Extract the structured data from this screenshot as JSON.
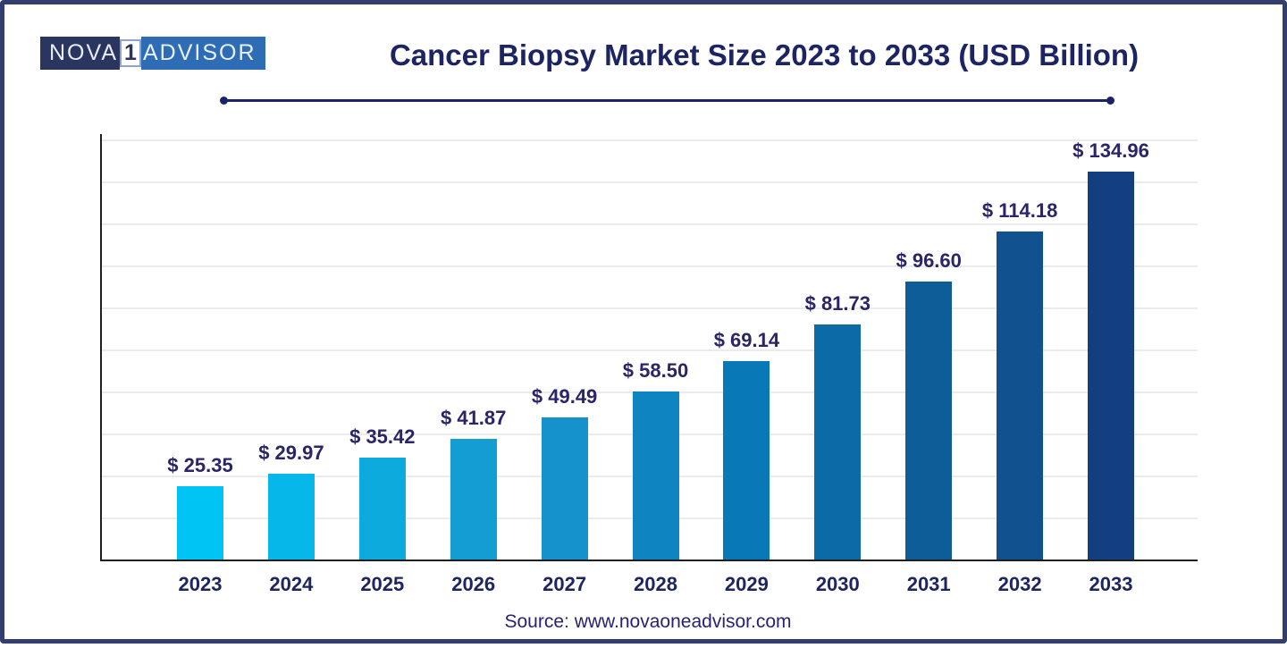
{
  "page": {
    "border_color": "#333d6e",
    "background": "#ffffff"
  },
  "logo": {
    "part1": "NOVA",
    "part2": "1",
    "part3": "ADVISOR",
    "part1_bg": "#2a3560",
    "part3_bg": "#2e6cb5"
  },
  "header": {
    "title": "Cancer Biopsy Market Size 2023 to 2033 (USD Billion)"
  },
  "footer": {
    "source": "Source: www.novaoneadvisor.com"
  },
  "chart_data": {
    "type": "bar",
    "title": "Cancer Biopsy Market Size 2023 to 2033 (USD Billion)",
    "categories": [
      "2023",
      "2024",
      "2025",
      "2026",
      "2027",
      "2028",
      "2029",
      "2030",
      "2031",
      "2032",
      "2033"
    ],
    "values": [
      25.35,
      29.97,
      35.42,
      41.87,
      49.49,
      58.5,
      69.14,
      81.73,
      96.6,
      114.18,
      134.96
    ],
    "value_labels": [
      "$ 25.35",
      "$ 29.97",
      "$ 35.42",
      "$ 41.87",
      "$ 49.49",
      "$ 58.50",
      "$ 69.14",
      "$ 81.73",
      "$ 96.60",
      "$ 114.18",
      "$ 134.96"
    ],
    "bar_colors": [
      "#00c4f4",
      "#06b7ea",
      "#0daade",
      "#149dd3",
      "#1591cb",
      "#0e85c1",
      "#0878b6",
      "#0c6aa6",
      "#0e5d99",
      "#115190",
      "#133e80"
    ],
    "unit": "USD Billion",
    "value_prefix": "$ ",
    "ylim": [
      0,
      150
    ],
    "grid": true,
    "gridline_count": 10,
    "legend": "none",
    "label_color": "#2a2468",
    "axis_color": "#1f1f1f",
    "gridline_color": "#ebebee"
  }
}
